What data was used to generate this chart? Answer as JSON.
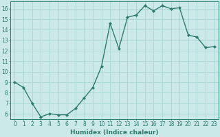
{
  "title": "",
  "xlabel": "Humidex (Indice chaleur)",
  "ylabel": "",
  "x": [
    0,
    1,
    2,
    3,
    4,
    5,
    6,
    7,
    8,
    9,
    10,
    11,
    12,
    13,
    14,
    15,
    16,
    17,
    18,
    19,
    20,
    21,
    22,
    23
  ],
  "y": [
    9.0,
    8.5,
    7.0,
    5.7,
    6.0,
    5.9,
    5.9,
    6.5,
    7.5,
    8.5,
    10.5,
    14.6,
    12.2,
    15.2,
    15.4,
    16.3,
    15.8,
    16.3,
    16.0,
    16.1,
    13.5,
    13.3,
    12.3,
    12.4
  ],
  "line_color": "#2d7a6e",
  "marker": "D",
  "marker_size": 2.2,
  "bg_color": "#cce9e9",
  "grid_color": "#aad4d4",
  "ylim": [
    5.5,
    16.7
  ],
  "xlim": [
    -0.5,
    23.5
  ],
  "yticks": [
    6,
    7,
    8,
    9,
    10,
    11,
    12,
    13,
    14,
    15,
    16
  ],
  "xticks": [
    0,
    1,
    2,
    3,
    4,
    5,
    6,
    7,
    8,
    9,
    10,
    11,
    12,
    13,
    14,
    15,
    16,
    17,
    18,
    19,
    20,
    21,
    22,
    23
  ],
  "xtick_labels": [
    "0",
    "1",
    "2",
    "3",
    "4",
    "5",
    "6",
    "7",
    "8",
    "9",
    "10",
    "11",
    "12",
    "13",
    "14",
    "15",
    "16",
    "17",
    "18",
    "19",
    "20",
    "21",
    "22",
    "23"
  ],
  "tick_color": "#2d7a6e",
  "label_fontsize": 6.5,
  "tick_fontsize": 5.5,
  "linewidth": 1.0
}
